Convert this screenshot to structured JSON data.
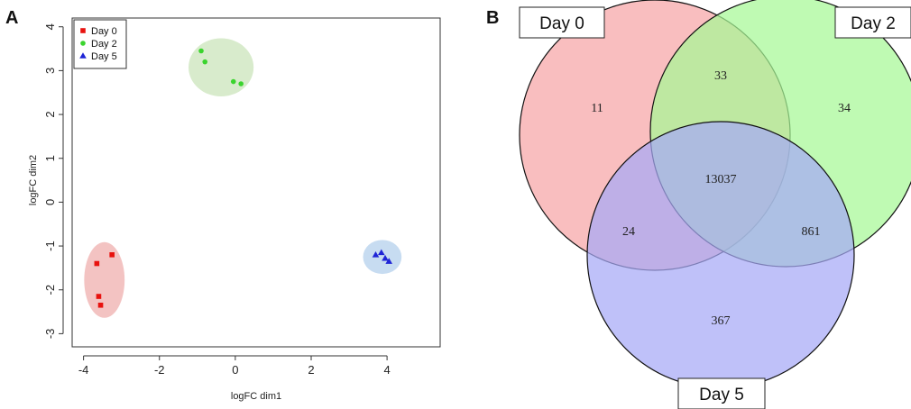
{
  "panels": {
    "a_letter": "A",
    "b_letter": "B"
  },
  "chart_data": [
    {
      "type": "scatter",
      "title": "",
      "xlabel": "logFC dim1",
      "ylabel": "logFC dim2",
      "xlim": [
        -4.3,
        5.4
      ],
      "ylim": [
        -3.3,
        4.2
      ],
      "x_ticks": [
        -4,
        -2,
        0,
        2,
        4
      ],
      "x_tick_labels": [
        "-4",
        "-2",
        "0",
        "2",
        "4"
      ],
      "y_ticks": [
        -3,
        -2,
        -1,
        0,
        1,
        2,
        3,
        4
      ],
      "y_tick_labels": [
        "-3",
        "-2",
        "-1",
        "0",
        "1",
        "2",
        "3",
        "4"
      ],
      "legend_position": "top-left",
      "series": [
        {
          "name": "Day 0",
          "marker": "square",
          "color": "#e8120e",
          "ellipse_color": "#f3c3c2",
          "points": [
            {
              "x": -3.25,
              "y": -1.2
            },
            {
              "x": -3.65,
              "y": -1.4
            },
            {
              "x": -3.6,
              "y": -2.15
            },
            {
              "x": -3.55,
              "y": -2.35
            }
          ]
        },
        {
          "name": "Day 2",
          "marker": "circle",
          "color": "#3bd42e",
          "ellipse_color": "#d8ebcc",
          "points": [
            {
              "x": -0.9,
              "y": 3.45
            },
            {
              "x": -0.8,
              "y": 3.2
            },
            {
              "x": -0.05,
              "y": 2.75
            },
            {
              "x": 0.15,
              "y": 2.7
            }
          ]
        },
        {
          "name": "Day 5",
          "marker": "triangle",
          "color": "#1f25d6",
          "ellipse_color": "#c7dcf1",
          "points": [
            {
              "x": 3.7,
              "y": -1.2
            },
            {
              "x": 3.85,
              "y": -1.15
            },
            {
              "x": 3.95,
              "y": -1.28
            },
            {
              "x": 4.05,
              "y": -1.35
            }
          ]
        }
      ]
    },
    {
      "type": "venn",
      "sets": [
        {
          "name": "Day 0",
          "color": "#f6a5a6"
        },
        {
          "name": "Day 2",
          "color": "#a6f896"
        },
        {
          "name": "Day 5",
          "color": "#a6a9f6"
        }
      ],
      "regions": [
        {
          "sets": [
            "Day 0"
          ],
          "value": "11"
        },
        {
          "sets": [
            "Day 0",
            "Day 2"
          ],
          "value": "33"
        },
        {
          "sets": [
            "Day 2"
          ],
          "value": "34"
        },
        {
          "sets": [
            "Day 0",
            "Day 2",
            "Day 5"
          ],
          "value": "13037"
        },
        {
          "sets": [
            "Day 0",
            "Day 5"
          ],
          "value": "24"
        },
        {
          "sets": [
            "Day 2",
            "Day 5"
          ],
          "value": "861"
        },
        {
          "sets": [
            "Day 5"
          ],
          "value": "367"
        }
      ]
    }
  ]
}
